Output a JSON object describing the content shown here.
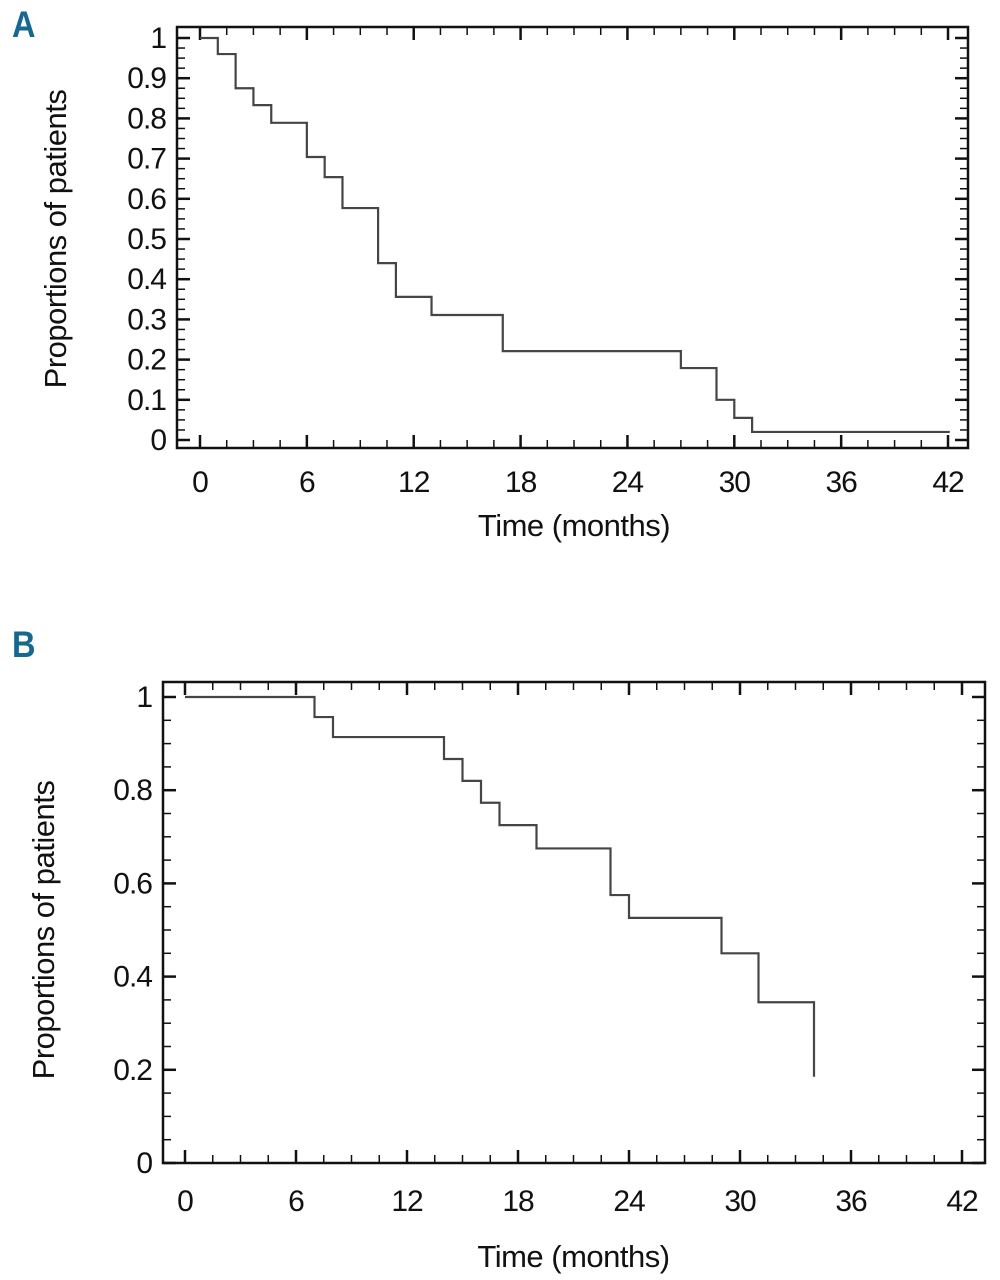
{
  "figure": {
    "background": "#ffffff",
    "axis_color": "#111111",
    "curve_color": "#454545",
    "panel_letter_color": "#16688f"
  },
  "chart_data": [
    {
      "type": "line",
      "chart_style": "kaplan-meier-step",
      "panel_label": "A",
      "xlabel": "Time (months)",
      "ylabel": "Proportions of patients",
      "xlim": [
        0,
        42
      ],
      "ylim": [
        0,
        1
      ],
      "x_tick_labels": [
        "0",
        "6",
        "12",
        "18",
        "24",
        "30",
        "36",
        "42"
      ],
      "x_major_step": 6,
      "x_minor_step": 1.5,
      "y_tick_labels": [
        "0",
        "0.1",
        "0.2",
        "0.3",
        "0.4",
        "0.5",
        "0.6",
        "0.7",
        "0.8",
        "0.9",
        "1"
      ],
      "y_major_step": 0.1,
      "y_minor_step": 0.025,
      "grid": false,
      "legend": null,
      "km_points": [
        [
          0,
          1.0
        ],
        [
          1,
          0.96
        ],
        [
          2,
          0.875
        ],
        [
          3,
          0.833
        ],
        [
          4,
          0.789
        ],
        [
          6,
          0.704
        ],
        [
          7,
          0.654
        ],
        [
          8,
          0.577
        ],
        [
          10,
          0.44
        ],
        [
          11,
          0.356
        ],
        [
          13,
          0.311
        ],
        [
          17,
          0.221
        ],
        [
          27,
          0.179
        ],
        [
          29,
          0.1
        ],
        [
          30,
          0.055
        ],
        [
          31,
          0.02
        ]
      ],
      "curve_end_time": 42.1
    },
    {
      "type": "line",
      "chart_style": "kaplan-meier-step",
      "panel_label": "B",
      "xlabel": "Time (months)",
      "ylabel": "Proportions of patients",
      "xlim": [
        0,
        42
      ],
      "ylim": [
        0,
        1
      ],
      "x_tick_labels": [
        "0",
        "6",
        "12",
        "18",
        "24",
        "30",
        "36",
        "42"
      ],
      "x_major_step": 6,
      "x_minor_step": 1.5,
      "y_tick_labels": [
        "0",
        "0.2",
        "0.4",
        "0.6",
        "0.8",
        "1"
      ],
      "y_major_step": 0.2,
      "y_minor_step": 0.05,
      "grid": false,
      "legend": null,
      "km_points": [
        [
          0,
          1.0
        ],
        [
          7,
          0.957
        ],
        [
          8,
          0.914
        ],
        [
          14,
          0.867
        ],
        [
          15,
          0.82
        ],
        [
          16,
          0.773
        ],
        [
          17,
          0.725
        ],
        [
          19,
          0.675
        ],
        [
          23,
          0.575
        ],
        [
          24,
          0.526
        ],
        [
          29,
          0.45
        ],
        [
          31,
          0.345
        ],
        [
          34,
          0.185
        ]
      ],
      "curve_end_time": null
    }
  ]
}
